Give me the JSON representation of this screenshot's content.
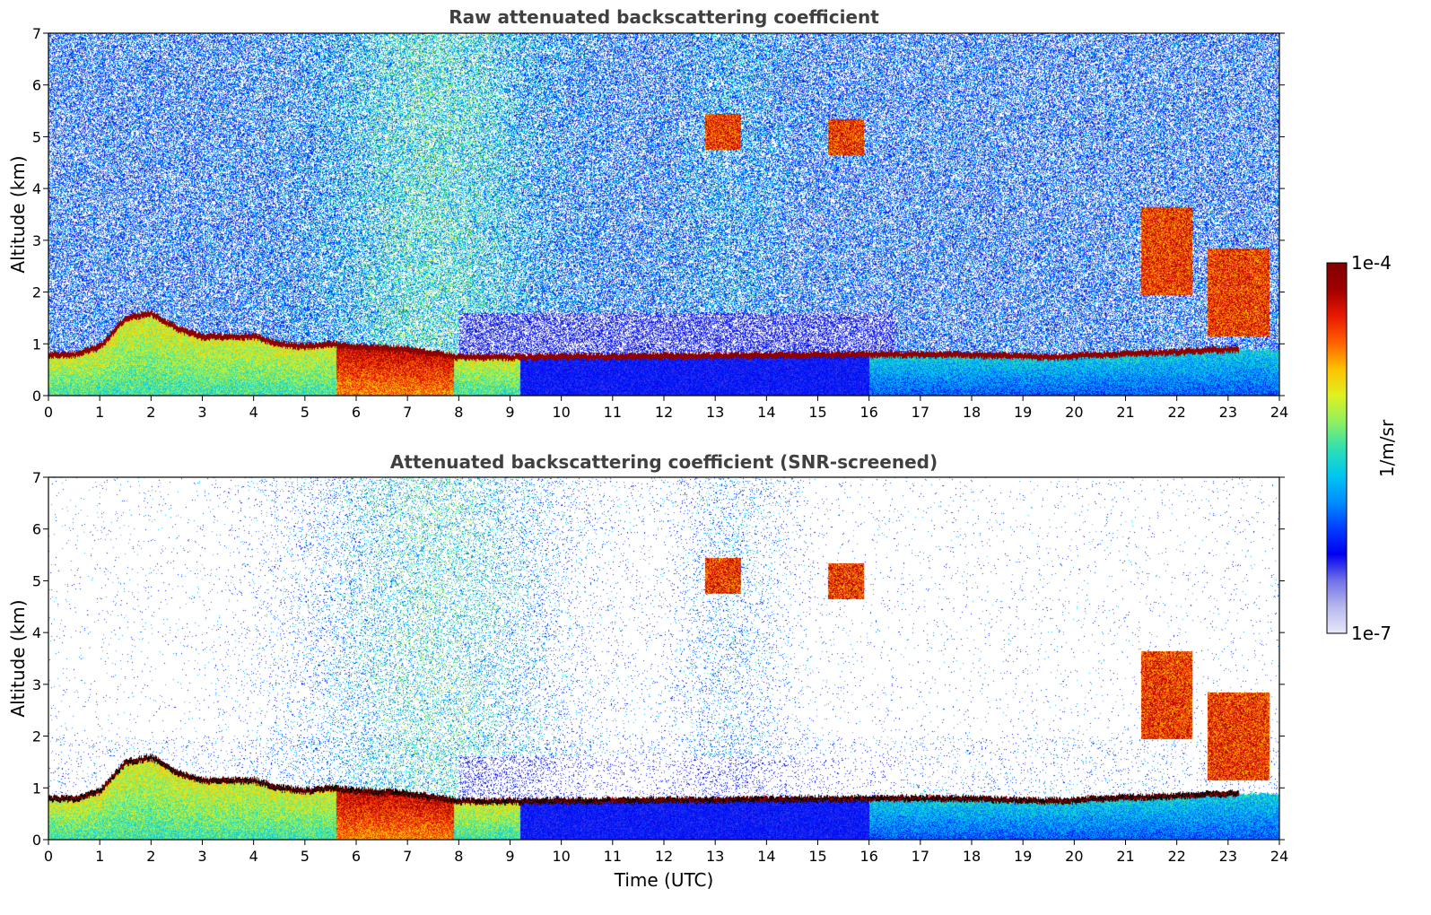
{
  "chart_data": [
    {
      "type": "heatmap",
      "title": "Raw attenuated backscattering coefficient",
      "xlabel": "",
      "ylabel": "Altitude (km)",
      "xlim": [
        0,
        24
      ],
      "ylim": [
        0,
        7
      ],
      "xticks": [
        "0",
        "1",
        "2",
        "3",
        "4",
        "5",
        "6",
        "7",
        "8",
        "9",
        "10",
        "11",
        "12",
        "13",
        "14",
        "15",
        "16",
        "17",
        "18",
        "19",
        "20",
        "21",
        "22",
        "23",
        "24"
      ],
      "yticks": [
        "0",
        "1",
        "2",
        "3",
        "4",
        "5",
        "6",
        "7"
      ],
      "features": {
        "boundary_layer_top_km": [
          [
            0,
            0.8
          ],
          [
            0.5,
            0.8
          ],
          [
            1,
            0.95
          ],
          [
            1.5,
            1.5
          ],
          [
            2,
            1.6
          ],
          [
            2.5,
            1.3
          ],
          [
            3,
            1.15
          ],
          [
            4,
            1.15
          ],
          [
            4.5,
            1.0
          ],
          [
            5,
            0.95
          ],
          [
            5.5,
            1.0
          ],
          [
            6,
            0.95
          ],
          [
            7,
            0.9
          ],
          [
            8,
            0.75
          ],
          [
            9.2,
            0.75
          ],
          [
            16,
            0.8
          ],
          [
            18,
            0.8
          ],
          [
            19.5,
            0.75
          ],
          [
            21,
            0.82
          ],
          [
            22,
            0.85
          ],
          [
            23,
            0.9
          ]
        ],
        "cloud_patches": [
          {
            "t_start": 12.8,
            "t_end": 13.5,
            "alt_km": 5.1
          },
          {
            "t_start": 15.2,
            "t_end": 15.9,
            "alt_km": 5.0
          },
          {
            "t_start": 21.3,
            "t_end": 22.3,
            "alt_km": 2.8
          },
          {
            "t_start": 22.6,
            "t_end": 23.8,
            "alt_km": 2.0
          }
        ]
      }
    },
    {
      "type": "heatmap",
      "title": "Attenuated backscattering coefficient (SNR-screened)",
      "xlabel": "Time (UTC)",
      "ylabel": "Altitude (km)",
      "xlim": [
        0,
        24
      ],
      "ylim": [
        0,
        7
      ],
      "xticks": [
        "0",
        "1",
        "2",
        "3",
        "4",
        "5",
        "6",
        "7",
        "8",
        "9",
        "10",
        "11",
        "12",
        "13",
        "14",
        "15",
        "16",
        "17",
        "18",
        "19",
        "20",
        "21",
        "22",
        "23",
        "24"
      ],
      "yticks": [
        "0",
        "1",
        "2",
        "3",
        "4",
        "5",
        "6",
        "7"
      ]
    }
  ],
  "colorbar": {
    "max_label": "1e-4",
    "min_label": "1e-7",
    "unit_label": "1/m/sr",
    "colors": [
      "#e8e8f8",
      "#b8b8ee",
      "#7070e8",
      "#0000f0",
      "#0040ff",
      "#0090ff",
      "#00c8f0",
      "#30e0b0",
      "#90f060",
      "#e0f020",
      "#ffc000",
      "#ff6000",
      "#e81800",
      "#a00000",
      "#800000"
    ]
  }
}
